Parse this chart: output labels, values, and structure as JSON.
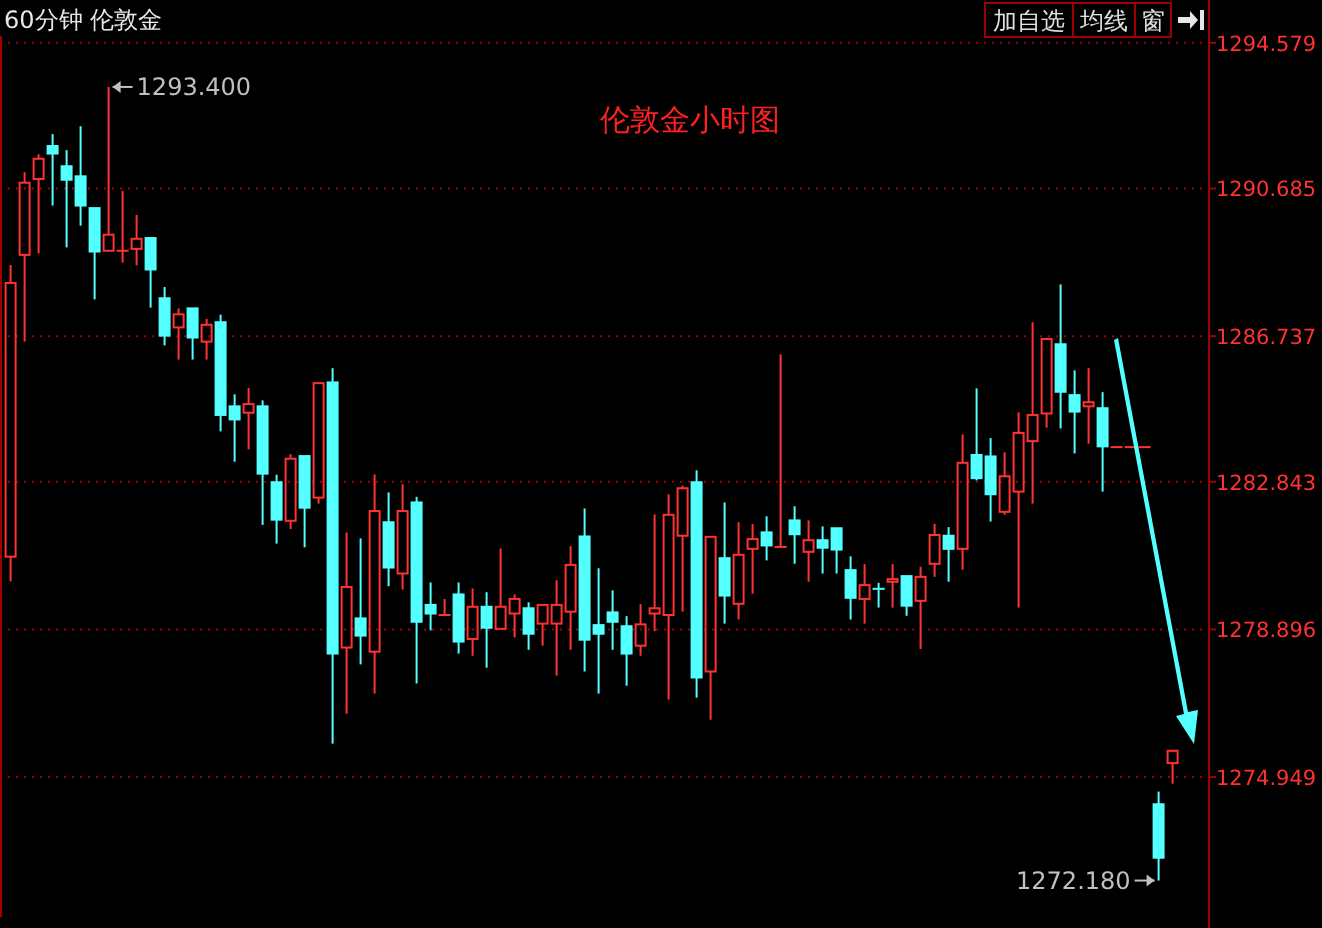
{
  "chart_data": {
    "type": "candlestick",
    "title": "伦敦金小时图",
    "subtitle": "60分钟 伦敦金",
    "categories": [
      null,
      null,
      null,
      null,
      null,
      null,
      null,
      null,
      null,
      null,
      null,
      null,
      null,
      null,
      null,
      null,
      null,
      null,
      null,
      null,
      null,
      null,
      null,
      null,
      null,
      null,
      null,
      null,
      null,
      null,
      null,
      null,
      null,
      null,
      null,
      null,
      null,
      null,
      null,
      null,
      null,
      null,
      null,
      null,
      null,
      null,
      null,
      null,
      null,
      null,
      null,
      null,
      null,
      null,
      null,
      null,
      null,
      null,
      null,
      null,
      null,
      null,
      null,
      null,
      null,
      null,
      null,
      null,
      null,
      null,
      null,
      null,
      null,
      null,
      null,
      null,
      null,
      null,
      null,
      null,
      null,
      null,
      null,
      null
    ],
    "ohlc": [
      [
        1280.84,
        1288.64,
        1280.18,
        1288.16
      ],
      [
        1288.91,
        1291.12,
        1286.59,
        1290.84
      ],
      [
        1290.94,
        1291.6,
        1288.95,
        1291.48
      ],
      [
        1291.82,
        1292.14,
        1290.23,
        1291.62
      ],
      [
        1291.28,
        1291.71,
        1289.11,
        1290.92
      ],
      [
        1291.01,
        1292.35,
        1289.69,
        1290.23
      ],
      [
        1290.16,
        1290.16,
        1287.72,
        1289.0
      ],
      [
        1289.02,
        1293.4,
        1289.02,
        1289.45
      ],
      [
        1289.02,
        1290.62,
        1288.7,
        1289.02
      ],
      [
        1289.07,
        1289.98,
        1288.63,
        1289.34
      ],
      [
        1289.36,
        1289.36,
        1287.5,
        1288.52
      ],
      [
        1287.75,
        1288.05,
        1286.49,
        1286.75
      ],
      [
        1286.97,
        1287.48,
        1286.11,
        1287.32
      ],
      [
        1287.48,
        1287.48,
        1286.11,
        1286.7
      ],
      [
        1286.59,
        1287.2,
        1286.11,
        1287.04
      ],
      [
        1287.11,
        1287.31,
        1284.19,
        1284.63
      ],
      [
        1284.86,
        1285.18,
        1283.38,
        1284.51
      ],
      [
        1284.69,
        1285.35,
        1283.71,
        1284.92
      ],
      [
        1284.86,
        1285.02,
        1281.69,
        1283.06
      ],
      [
        1282.83,
        1283.03,
        1281.19,
        1281.83
      ],
      [
        1281.8,
        1283.58,
        1281.58,
        1283.46
      ],
      [
        1283.53,
        1283.53,
        1281.09,
        1282.15
      ],
      [
        1282.42,
        1285.48,
        1282.26,
        1285.48
      ],
      [
        1285.5,
        1285.88,
        1275.84,
        1278.25
      ],
      [
        1278.41,
        1281.49,
        1276.64,
        1280.03
      ],
      [
        1279.19,
        1281.33,
        1277.96,
        1278.73
      ],
      [
        1278.3,
        1283.04,
        1277.18,
        1282.06
      ],
      [
        1281.76,
        1282.56,
        1280.05,
        1280.55
      ],
      [
        1280.39,
        1282.78,
        1279.96,
        1282.06
      ],
      [
        1282.29,
        1282.44,
        1277.45,
        1279.1
      ],
      [
        1279.55,
        1280.15,
        1278.87,
        1279.32
      ],
      [
        1279.28,
        1279.71,
        1279.28,
        1279.28
      ],
      [
        1279.83,
        1280.15,
        1278.25,
        1278.57
      ],
      [
        1278.64,
        1279.99,
        1278.19,
        1279.5
      ],
      [
        1279.5,
        1279.89,
        1277.87,
        1278.94
      ],
      [
        1278.91,
        1281.06,
        1278.91,
        1279.5
      ],
      [
        1279.32,
        1279.83,
        1278.68,
        1279.71
      ],
      [
        1279.46,
        1279.62,
        1278.35,
        1278.78
      ],
      [
        1279.05,
        1279.55,
        1278.46,
        1279.55
      ],
      [
        1279.05,
        1280.21,
        1277.66,
        1279.55
      ],
      [
        1279.37,
        1281.12,
        1278.35,
        1280.62
      ],
      [
        1281.38,
        1282.13,
        1277.77,
        1278.62
      ],
      [
        1279.01,
        1280.53,
        1277.18,
        1278.78
      ],
      [
        1279.35,
        1279.94,
        1278.35,
        1279.1
      ],
      [
        1278.98,
        1279.25,
        1277.39,
        1278.25
      ],
      [
        1278.46,
        1279.57,
        1278.19,
        1279.03
      ],
      [
        1279.32,
        1281.97,
        1278.85,
        1279.46
      ],
      [
        1279.28,
        1282.51,
        1277.02,
        1281.96
      ],
      [
        1281.4,
        1282.74,
        1279.37,
        1282.67
      ],
      [
        1282.83,
        1283.15,
        1277.07,
        1277.61
      ],
      [
        1277.77,
        1281.37,
        1276.48,
        1281.37
      ],
      [
        1280.8,
        1282.29,
        1279.05,
        1279.8
      ],
      [
        1279.58,
        1281.76,
        1279.16,
        1280.89
      ],
      [
        1281.05,
        1281.71,
        1279.85,
        1281.31
      ],
      [
        1281.49,
        1281.92,
        1280.74,
        1281.14
      ],
      [
        1281.1,
        1286.25,
        1281.1,
        1281.1
      ],
      [
        1281.81,
        1282.19,
        1280.65,
        1281.44
      ],
      [
        1280.97,
        1281.81,
        1280.17,
        1281.28
      ],
      [
        1281.28,
        1281.65,
        1280.39,
        1281.08
      ],
      [
        1281.6,
        1281.6,
        1280.39,
        1281.03
      ],
      [
        1280.48,
        1280.85,
        1279.16,
        1279.74
      ],
      [
        1279.71,
        1280.64,
        1279.05,
        1280.08
      ],
      [
        1279.98,
        1280.14,
        1279.48,
        1279.97
      ],
      [
        1280.17,
        1280.64,
        1279.48,
        1280.24
      ],
      [
        1280.32,
        1280.32,
        1279.26,
        1279.53
      ],
      [
        1279.66,
        1280.57,
        1278.37,
        1280.3
      ],
      [
        1280.65,
        1281.72,
        1280.3,
        1281.42
      ],
      [
        1281.4,
        1281.63,
        1280.17,
        1281.05
      ],
      [
        1281.05,
        1284.11,
        1280.49,
        1283.35
      ],
      [
        1283.56,
        1285.34,
        1282.88,
        1282.94
      ],
      [
        1283.52,
        1284.01,
        1281.78,
        1282.51
      ],
      [
        1282.04,
        1283.63,
        1281.96,
        1282.99
      ],
      [
        1282.58,
        1284.7,
        1279.48,
        1284.15
      ],
      [
        1283.93,
        1287.11,
        1282.26,
        1284.63
      ],
      [
        1284.67,
        1286.66,
        1284.29,
        1286.66
      ],
      [
        1286.52,
        1288.12,
        1284.27,
        1285.25
      ],
      [
        1285.16,
        1285.82,
        1283.6,
        1284.72
      ],
      [
        1284.86,
        1285.88,
        1283.86,
        1284.97
      ],
      [
        1284.81,
        1285.24,
        1282.58,
        1283.79
      ],
      [
        1283.77,
        1283.77,
        1283.77,
        1283.77
      ],
      [
        1283.77,
        1283.77,
        1283.77,
        1283.77
      ],
      [
        1283.77,
        1283.77,
        1283.77,
        1283.77
      ],
      [
        1274.22,
        1274.56,
        1272.18,
        1272.79
      ],
      [
        1275.32,
        1275.65,
        1274.77,
        1275.65
      ]
    ],
    "ylim": [
      1271.2,
      1294.8
    ],
    "yticks": [
      1274.949,
      1278.896,
      1282.843,
      1286.737,
      1290.685,
      1294.579
    ],
    "grid": "y",
    "tick_labels": "y",
    "annotations": [
      "1293.400",
      "1272.180",
      "加自选",
      "均线",
      "窗"
    ]
  }
}
